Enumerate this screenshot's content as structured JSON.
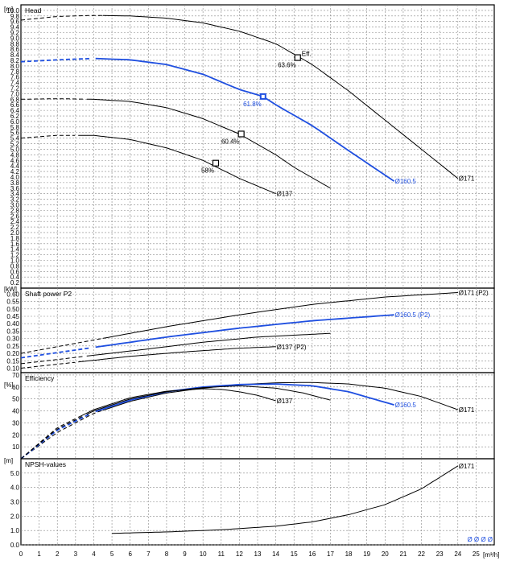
{
  "chart_data": [
    {
      "type": "line",
      "title": "Head",
      "ylabel": "[m]",
      "xlim": [
        0,
        26
      ],
      "ylim": [
        0,
        10.2
      ],
      "ytick_labels": [
        "0.2",
        "0.4",
        "0.6",
        "0.8",
        "1.0",
        "1.2",
        "1.4",
        "1.6",
        "1.8",
        "2.0",
        "2.2",
        "2.4",
        "2.6",
        "2.8",
        "3.0",
        "3.2",
        "3.4",
        "3.6",
        "3.8",
        "4.0",
        "4.2",
        "4.4",
        "4.6",
        "4.8",
        "5.0",
        "5.2",
        "5.4",
        "5.6",
        "5.8",
        "6.0",
        "6.2",
        "6.4",
        "6.6",
        "6.8",
        "7.0",
        "7.2",
        "7.4",
        "7.6",
        "7.8",
        "8.0",
        "8.2",
        "8.4",
        "8.6",
        "8.8",
        "9.0",
        "9.2",
        "9.4",
        "9.6",
        "9.8",
        "10.0"
      ],
      "series": [
        {
          "name": "Ø171",
          "color": "#000000",
          "dashed_until": 4.5,
          "x": [
            0,
            2,
            4,
            6,
            8,
            10,
            12,
            14,
            16,
            18,
            20,
            22,
            24
          ],
          "y": [
            9.65,
            9.78,
            9.82,
            9.8,
            9.72,
            9.55,
            9.25,
            8.8,
            8.05,
            7.1,
            6.05,
            5.0,
            3.95
          ]
        },
        {
          "name": "Ø160.5",
          "color": "#1f4fe0",
          "dashed_until": 4.0,
          "x": [
            0,
            2,
            4,
            6,
            8,
            10,
            12,
            13.3,
            14,
            16,
            18,
            20.5
          ],
          "y": [
            8.15,
            8.22,
            8.27,
            8.22,
            8.05,
            7.7,
            7.15,
            6.9,
            6.6,
            5.85,
            4.95,
            3.85
          ]
        },
        {
          "name": "",
          "color": "#000000",
          "dashed_until": 3.5,
          "x": [
            0,
            2,
            4,
            6,
            8,
            10,
            12,
            14,
            15,
            17
          ],
          "y": [
            6.8,
            6.82,
            6.8,
            6.72,
            6.5,
            6.1,
            5.55,
            4.8,
            4.35,
            3.6
          ]
        },
        {
          "name": "Ø137",
          "color": "#000000",
          "dashed_until": 3.0,
          "x": [
            0,
            2,
            4,
            6,
            8,
            10,
            12,
            14
          ],
          "y": [
            5.4,
            5.5,
            5.5,
            5.35,
            5.05,
            4.6,
            3.95,
            3.4
          ]
        }
      ],
      "markers": [
        {
          "x": 15.2,
          "y": 8.3,
          "label": "63.6%",
          "color": "#000000"
        },
        {
          "x": 13.3,
          "y": 6.9,
          "label": "61.8%",
          "color": "#1f4fe0"
        },
        {
          "x": 12.1,
          "y": 5.55,
          "label": "60.4%",
          "color": "#000000"
        },
        {
          "x": 10.7,
          "y": 4.5,
          "label": "58%",
          "color": "#000000"
        }
      ],
      "annotation": "Eff."
    },
    {
      "type": "line",
      "title": "Shaft power P2",
      "ylabel": "[kW]",
      "xlim": [
        0,
        26
      ],
      "ylim": [
        0.07,
        0.64
      ],
      "ytick_labels": [
        "0.10",
        "0.15",
        "0.20",
        "0.25",
        "0.30",
        "0.35",
        "0.40",
        "0.45",
        "0.50",
        "0.55",
        "0.60"
      ],
      "series": [
        {
          "name": "Ø171 (P2)",
          "color": "#000000",
          "dashed_until": 4.5,
          "x": [
            0,
            4,
            8,
            12,
            16,
            20,
            24
          ],
          "y": [
            0.2,
            0.29,
            0.38,
            0.46,
            0.53,
            0.58,
            0.61
          ]
        },
        {
          "name": "Ø160.5 (P2)",
          "color": "#1f4fe0",
          "dashed_until": 4.0,
          "x": [
            0,
            4,
            8,
            12,
            16,
            20.5
          ],
          "y": [
            0.17,
            0.24,
            0.31,
            0.37,
            0.42,
            0.46
          ]
        },
        {
          "name": "",
          "color": "#000000",
          "dashed_until": 3.5,
          "x": [
            0,
            3.5,
            7,
            10,
            13,
            17
          ],
          "y": [
            0.13,
            0.18,
            0.23,
            0.275,
            0.31,
            0.335
          ]
        },
        {
          "name": "Ø137 (P2)",
          "color": "#000000",
          "dashed_until": 3.0,
          "x": [
            0,
            3,
            6,
            9,
            12,
            14
          ],
          "y": [
            0.1,
            0.14,
            0.18,
            0.21,
            0.235,
            0.245
          ]
        }
      ]
    },
    {
      "type": "line",
      "title": "Efficiency",
      "ylabel": "[%]",
      "xlim": [
        0,
        26
      ],
      "ylim": [
        0,
        72
      ],
      "ytick_labels": [
        "10",
        "20",
        "30",
        "40",
        "50",
        "60",
        "70"
      ],
      "series": [
        {
          "name": "Ø171",
          "color": "#000000",
          "dashed_until": 4.5,
          "x": [
            0,
            2,
            4,
            6,
            8,
            10,
            12,
            14,
            16,
            18,
            20,
            22,
            24
          ],
          "y": [
            0,
            22,
            38,
            48,
            55,
            59,
            62,
            63.5,
            63.8,
            62.5,
            59,
            52,
            41
          ]
        },
        {
          "name": "Ø160.5",
          "color": "#1f4fe0",
          "dashed_until": 4.0,
          "x": [
            0,
            2,
            4,
            6,
            8,
            10,
            12,
            14,
            16,
            18,
            20.5
          ],
          "y": [
            0,
            24,
            39,
            49,
            56,
            60,
            62,
            62.5,
            61,
            56,
            45
          ]
        },
        {
          "name": "",
          "color": "#000000",
          "dashed_until": 3.5,
          "x": [
            0,
            2,
            4,
            6,
            8,
            10,
            12,
            14,
            15.5,
            17
          ],
          "y": [
            0,
            25,
            40,
            50,
            56,
            59.5,
            61,
            59,
            55,
            49
          ]
        },
        {
          "name": "Ø137",
          "color": "#000000",
          "dashed_until": 3.0,
          "x": [
            0,
            2,
            4,
            6,
            8,
            10,
            11,
            12,
            13,
            14
          ],
          "y": [
            0,
            26,
            41,
            51,
            56.5,
            58.5,
            58,
            56,
            53,
            48.5
          ]
        }
      ]
    },
    {
      "type": "line",
      "title": "NPSH-values",
      "ylabel": "[m]",
      "xlim": [
        0,
        26
      ],
      "ylim": [
        0,
        6
      ],
      "ytick_labels": [
        "0.0",
        "1.0",
        "2.0",
        "3.0",
        "4.0",
        "5.0"
      ],
      "series": [
        {
          "name": "Ø171",
          "color": "#000000",
          "dashed_until": null,
          "x": [
            5,
            8,
            11,
            14,
            16,
            18,
            20,
            22,
            24
          ],
          "y": [
            0.8,
            0.9,
            1.05,
            1.3,
            1.6,
            2.1,
            2.8,
            3.9,
            5.5
          ]
        }
      ],
      "corner_label": "Ø Ø Ø Ø"
    }
  ],
  "x_axis": {
    "unit": "[m³/h]",
    "tick_labels": [
      "0",
      "1",
      "2",
      "3",
      "4",
      "5",
      "6",
      "7",
      "8",
      "9",
      "10",
      "11",
      "12",
      "13",
      "14",
      "15",
      "16",
      "17",
      "18",
      "19",
      "20",
      "21",
      "22",
      "23",
      "24",
      "25"
    ]
  }
}
